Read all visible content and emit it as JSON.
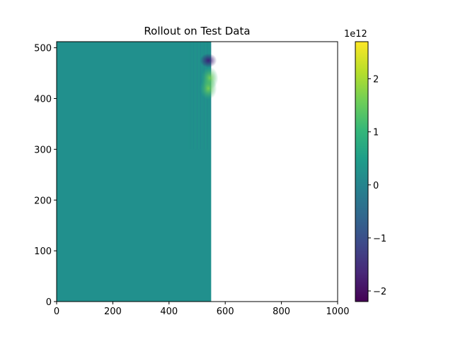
{
  "chart_data": {
    "type": "heatmap",
    "title": "Rollout on Test Data",
    "xlabel": "",
    "ylabel": "",
    "xlim": [
      0,
      1000
    ],
    "ylim": [
      0,
      512
    ],
    "x_ticks": [
      "0",
      "200",
      "400",
      "600",
      "800",
      "1000"
    ],
    "y_ticks": [
      "0",
      "100",
      "200",
      "300",
      "400",
      "500"
    ],
    "data_extent_x": [
      0,
      550
    ],
    "data_extent_y": [
      0,
      512
    ],
    "background_value": 0,
    "colormap": "viridis",
    "colorbar": {
      "range": [
        -2.2,
        2.7
      ],
      "scale_label": "1e12",
      "ticks": [
        "−2",
        "−1",
        "0",
        "1",
        "2"
      ],
      "tick_values": [
        -2,
        -1,
        0,
        1,
        2
      ]
    },
    "features": [
      {
        "x": 540,
        "y": 475,
        "value": -1.5
      },
      {
        "x": 545,
        "y": 440,
        "value": 1.8
      },
      {
        "x": 540,
        "y": 420,
        "value": 1.2
      }
    ],
    "grid": false
  }
}
